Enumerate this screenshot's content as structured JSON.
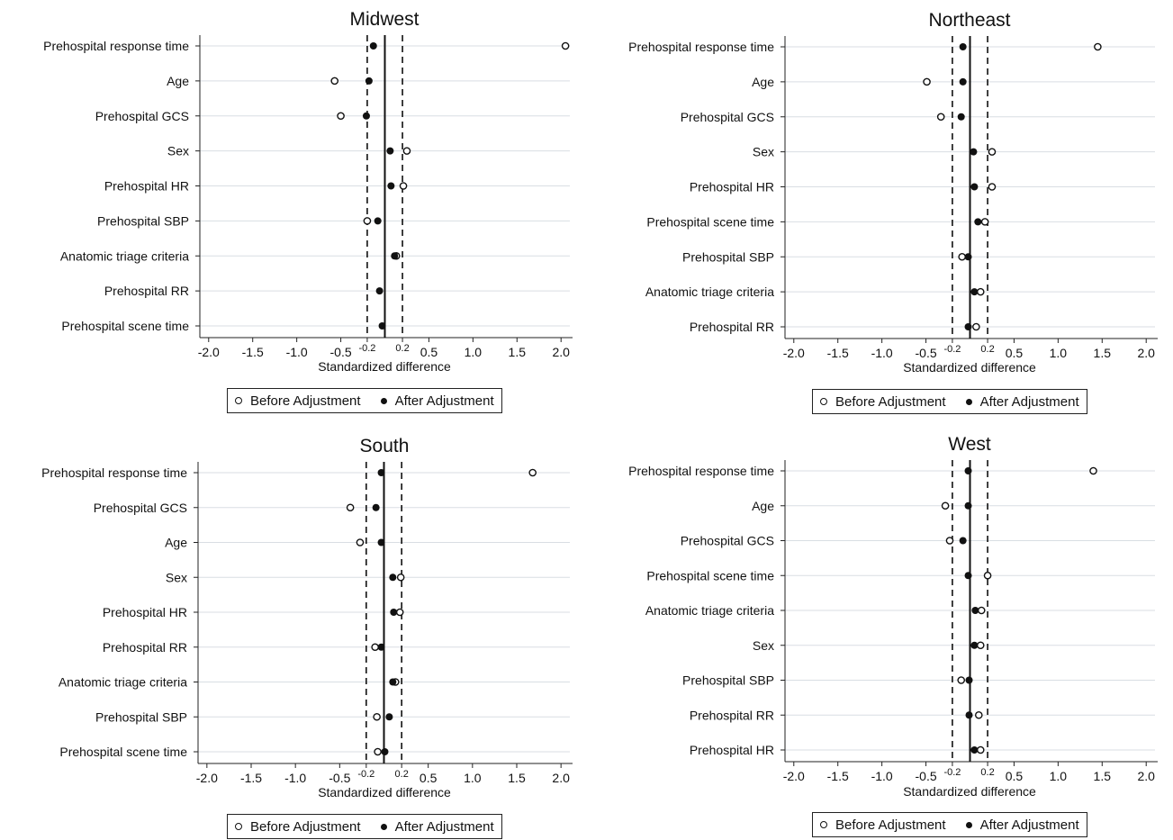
{
  "chart_data": [
    {
      "type": "scatter",
      "title": "Midwest",
      "xlabel": "Standardized difference",
      "ylabel": "",
      "xlim": [
        -2.1,
        2.1
      ],
      "x_ticks": [
        -2.0,
        -1.5,
        -1.0,
        -0.5,
        -0.2,
        0.2,
        0.5,
        1.0,
        1.5,
        2.0
      ],
      "x_tick_labels": [
        "-2.0",
        "-1.5",
        "-1.0",
        "-0.5",
        "-0.2",
        "0.2",
        "0.5",
        "1.0",
        "1.5",
        "2.0"
      ],
      "reference_lines": {
        "solid": 0,
        "dashed": [
          -0.2,
          0.2
        ]
      },
      "categories": [
        "Prehospital response time",
        "Age",
        "Prehospital GCS",
        "Sex",
        "Prehospital HR",
        "Prehospital SBP",
        "Anatomic triage criteria",
        "Prehospital RR",
        "Prehospital scene time"
      ],
      "series": [
        {
          "name": "Before Adjustment",
          "marker": "open",
          "values": [
            2.05,
            -0.57,
            -0.5,
            0.25,
            0.21,
            -0.2,
            0.13,
            null,
            null
          ]
        },
        {
          "name": "After Adjustment",
          "marker": "filled",
          "values": [
            -0.13,
            -0.18,
            -0.21,
            0.06,
            0.07,
            -0.08,
            0.11,
            -0.06,
            -0.03
          ]
        }
      ],
      "legend": {
        "position": "bottom-center",
        "entries": [
          "Before Adjustment",
          "After Adjustment"
        ]
      },
      "grid": "horizontal"
    },
    {
      "type": "scatter",
      "title": "Northeast",
      "xlabel": "Standardized difference",
      "ylabel": "",
      "xlim": [
        -2.1,
        2.1
      ],
      "x_ticks": [
        -2.0,
        -1.5,
        -1.0,
        -0.5,
        -0.2,
        0.2,
        0.5,
        1.0,
        1.5,
        2.0
      ],
      "x_tick_labels": [
        "-2.0",
        "-1.5",
        "-1.0",
        "-0.5",
        "-0.2",
        "0.2",
        "0.5",
        "1.0",
        "1.5",
        "2.0"
      ],
      "reference_lines": {
        "solid": 0,
        "dashed": [
          -0.2,
          0.2
        ]
      },
      "categories": [
        "Prehospital response time",
        "Age",
        "Prehospital GCS",
        "Sex",
        "Prehospital HR",
        "Prehospital scene time",
        "Prehospital SBP",
        "Anatomic triage criteria",
        "Prehospital RR"
      ],
      "series": [
        {
          "name": "Before Adjustment",
          "marker": "open",
          "values": [
            1.45,
            -0.49,
            -0.33,
            0.25,
            0.25,
            0.17,
            -0.09,
            0.12,
            0.07
          ]
        },
        {
          "name": "After Adjustment",
          "marker": "filled",
          "values": [
            -0.08,
            -0.08,
            -0.1,
            0.04,
            0.05,
            0.09,
            -0.02,
            0.05,
            -0.02
          ]
        }
      ],
      "legend": {
        "position": "bottom-center",
        "entries": [
          "Before Adjustment",
          "After Adjustment"
        ]
      },
      "grid": "horizontal"
    },
    {
      "type": "scatter",
      "title": "South",
      "xlabel": "Standardized difference",
      "ylabel": "",
      "xlim": [
        -2.1,
        2.1
      ],
      "x_ticks": [
        -2.0,
        -1.5,
        -1.0,
        -0.5,
        -0.2,
        0.2,
        0.5,
        1.0,
        1.5,
        2.0
      ],
      "x_tick_labels": [
        "-2.0",
        "-1.5",
        "-1.0",
        "-0.5",
        "-0.2",
        "0.2",
        "0.5",
        "1.0",
        "1.5",
        "2.0"
      ],
      "reference_lines": {
        "solid": 0,
        "dashed": [
          -0.2,
          0.2
        ]
      },
      "categories": [
        "Prehospital response time",
        "Prehospital GCS",
        "Age",
        "Sex",
        "Prehospital HR",
        "Prehospital RR",
        "Anatomic triage criteria",
        "Prehospital SBP",
        "Prehospital scene time"
      ],
      "series": [
        {
          "name": "Before Adjustment",
          "marker": "open",
          "values": [
            1.68,
            -0.38,
            -0.27,
            0.19,
            0.18,
            -0.1,
            0.13,
            -0.08,
            -0.07
          ]
        },
        {
          "name": "After Adjustment",
          "marker": "filled",
          "values": [
            -0.03,
            -0.09,
            -0.03,
            0.1,
            0.11,
            -0.03,
            0.1,
            0.06,
            0.01
          ]
        }
      ],
      "legend": {
        "position": "bottom-center",
        "entries": [
          "Before Adjustment",
          "After Adjustment"
        ]
      },
      "grid": "horizontal"
    },
    {
      "type": "scatter",
      "title": "West",
      "xlabel": "Standardized difference",
      "ylabel": "",
      "xlim": [
        -2.1,
        2.1
      ],
      "x_ticks": [
        -2.0,
        -1.5,
        -1.0,
        -0.5,
        -0.2,
        0.2,
        0.5,
        1.0,
        1.5,
        2.0
      ],
      "x_tick_labels": [
        "-2.0",
        "-1.5",
        "-1.0",
        "-0.5",
        "-0.2",
        "0.2",
        "0.5",
        "1.0",
        "1.5",
        "2.0"
      ],
      "reference_lines": {
        "solid": 0,
        "dashed": [
          -0.2,
          0.2
        ]
      },
      "categories": [
        "Prehospital response time",
        "Age",
        "Prehospital GCS",
        "Prehospital scene time",
        "Anatomic triage criteria",
        "Sex",
        "Prehospital SBP",
        "Prehospital RR",
        "Prehospital HR"
      ],
      "series": [
        {
          "name": "Before Adjustment",
          "marker": "open",
          "values": [
            1.4,
            -0.28,
            -0.23,
            0.2,
            0.13,
            0.12,
            -0.1,
            0.1,
            0.12
          ]
        },
        {
          "name": "After Adjustment",
          "marker": "filled",
          "values": [
            -0.02,
            -0.02,
            -0.08,
            -0.02,
            0.06,
            0.05,
            -0.01,
            -0.01,
            0.05
          ]
        }
      ],
      "legend": {
        "position": "bottom-center",
        "entries": [
          "Before Adjustment",
          "After Adjustment"
        ]
      },
      "grid": "horizontal"
    }
  ]
}
